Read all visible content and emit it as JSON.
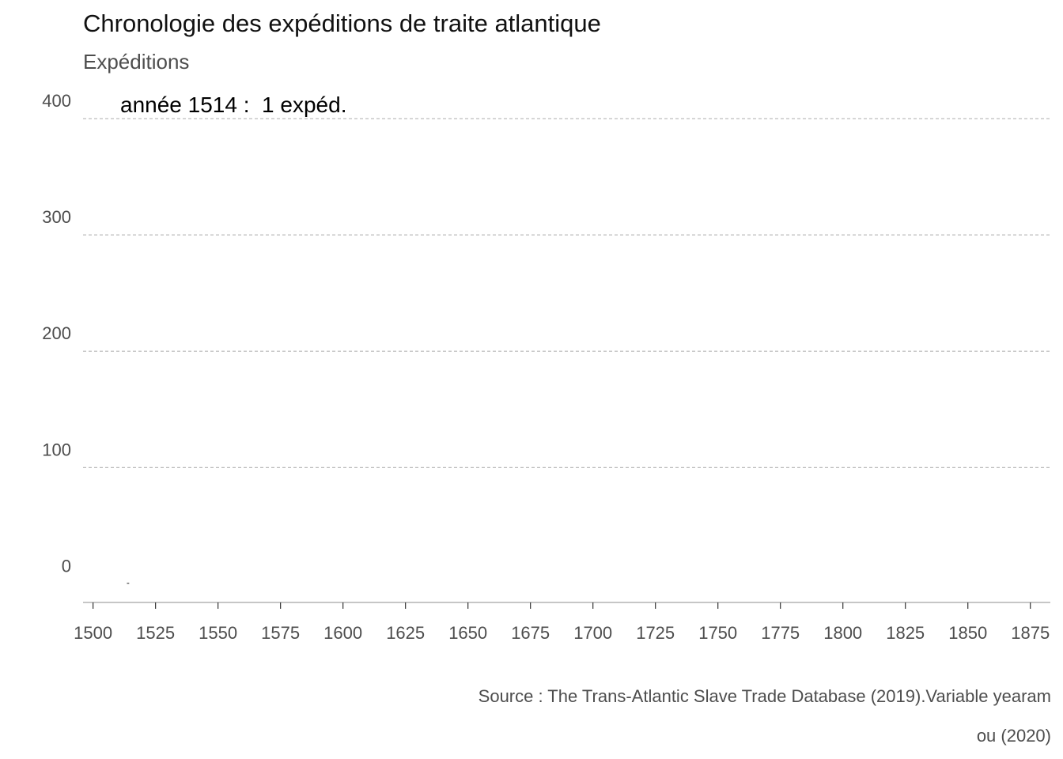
{
  "chart_data": {
    "type": "bar",
    "title": "Chronologie des expéditions de traite atlantique",
    "subtitle": "Expéditions",
    "annotation": "année 1514 :  1 expéd.",
    "xlabel": "",
    "ylabel": "Expéditions",
    "xlim": [
      1496,
      1883
    ],
    "ylim": [
      -16,
      400
    ],
    "x_ticks": [
      1500,
      1525,
      1550,
      1575,
      1600,
      1625,
      1650,
      1675,
      1700,
      1725,
      1750,
      1775,
      1800,
      1825,
      1850,
      1875
    ],
    "y_ticks": [
      0,
      100,
      200,
      300,
      400
    ],
    "grid": "horizontal dashed",
    "series": [
      {
        "x": [
          1514
        ],
        "values": [
          1
        ]
      }
    ],
    "caption_lines": [
      "Source : The Trans-Atlantic Slave Trade Database (2019).Variable yearam",
      "ou (2020)"
    ]
  },
  "colors": {
    "bar": "#666666",
    "grid": "#bdbdbd",
    "axis": "#b3b3b3",
    "text": "#4d4d4d"
  }
}
